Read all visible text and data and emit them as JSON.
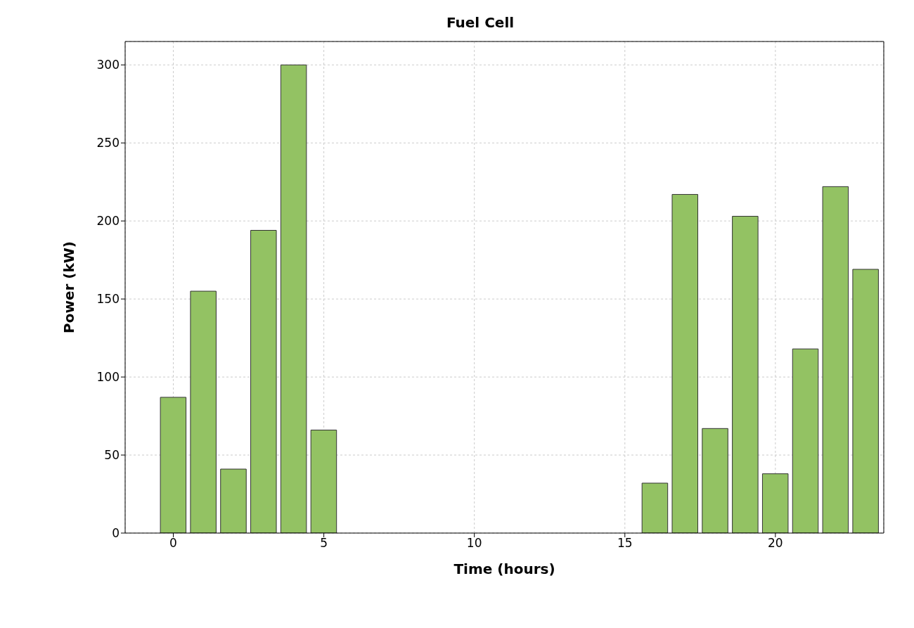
{
  "chart_data": {
    "type": "bar",
    "title": "Fuel Cell",
    "xlabel": "Time (hours)",
    "ylabel": "Power (kW)",
    "x": [
      0,
      1,
      2,
      3,
      4,
      5,
      6,
      7,
      8,
      9,
      10,
      11,
      12,
      13,
      14,
      15,
      16,
      17,
      18,
      19,
      20,
      21,
      22,
      23
    ],
    "values": [
      87,
      155,
      41,
      194,
      300,
      66,
      0,
      0,
      0,
      0,
      0,
      0,
      0,
      0,
      0,
      0,
      32,
      217,
      67,
      203,
      38,
      118,
      222,
      169
    ],
    "color": "#93c263",
    "xlim": [
      -1.6,
      23.6
    ],
    "xticks": [
      0,
      5,
      10,
      15,
      20
    ],
    "ylim": [
      0,
      315
    ],
    "yticks": [
      0,
      50,
      100,
      150,
      200,
      250,
      300
    ],
    "grid": true
  }
}
